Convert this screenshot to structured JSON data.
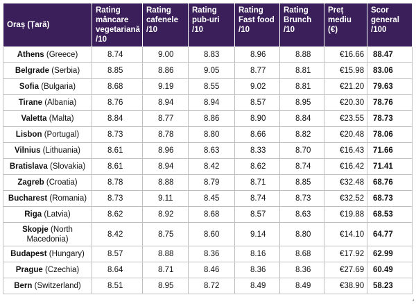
{
  "headers": [
    "Oraș (Țară)",
    "Rating mâncare vegetariană /10",
    "Rating cafenele /10",
    "Rating pub-uri /10",
    "Rating Fast food /10",
    "Rating Brunch /10",
    "Preț mediu (€)",
    "Scor general /100"
  ],
  "rows": [
    {
      "city": "Athens",
      "country": "(Greece)",
      "veg": "8.74",
      "cafe": "9.00",
      "pub": "8.83",
      "fast": "8.96",
      "brunch": "8.88",
      "price": "€16.66",
      "score": "88.47"
    },
    {
      "city": "Belgrade",
      "country": "(Serbia)",
      "veg": "8.85",
      "cafe": "8.86",
      "pub": "9.05",
      "fast": "8.77",
      "brunch": "8.81",
      "price": "€15.98",
      "score": "83.06"
    },
    {
      "city": "Sofia",
      "country": "(Bulgaria)",
      "veg": "8.68",
      "cafe": "9.19",
      "pub": "8.55",
      "fast": "9.02",
      "brunch": "8.81",
      "price": "€21.20",
      "score": "79.63"
    },
    {
      "city": "Tirane",
      "country": "(Albania)",
      "veg": "8.76",
      "cafe": "8.94",
      "pub": "8.94",
      "fast": "8.57",
      "brunch": "8.95",
      "price": "€20.30",
      "score": "78.76"
    },
    {
      "city": "Valetta",
      "country": "(Malta)",
      "veg": "8.84",
      "cafe": "8.77",
      "pub": "8.86",
      "fast": "8.90",
      "brunch": "8.84",
      "price": "€23.55",
      "score": "78.73"
    },
    {
      "city": "Lisbon",
      "country": "(Portugal)",
      "veg": "8.73",
      "cafe": "8.78",
      "pub": "8.80",
      "fast": "8.66",
      "brunch": "8.82",
      "price": "€20.48",
      "score": "78.06"
    },
    {
      "city": "Vilnius",
      "country": "(Lithuania)",
      "veg": "8.61",
      "cafe": "8.96",
      "pub": "8.63",
      "fast": "8.33",
      "brunch": "8.70",
      "price": "€16.43",
      "score": "71.66"
    },
    {
      "city": "Bratislava",
      "country": "(Slovakia)",
      "veg": "8.61",
      "cafe": "8.94",
      "pub": "8.42",
      "fast": "8.62",
      "brunch": "8.74",
      "price": "€16.42",
      "score": "71.41"
    },
    {
      "city": "Zagreb",
      "country": "(Croatia)",
      "veg": "8.78",
      "cafe": "8.88",
      "pub": "8.79",
      "fast": "8.71",
      "brunch": "8.85",
      "price": "€32.48",
      "score": "68.76"
    },
    {
      "city": "Bucharest",
      "country": "(Romania)",
      "veg": "8.73",
      "cafe": "9.11",
      "pub": "8.45",
      "fast": "8.74",
      "brunch": "8.73",
      "price": "€32.52",
      "score": "68.73"
    },
    {
      "city": "Riga",
      "country": "(Latvia)",
      "veg": "8.62",
      "cafe": "8.92",
      "pub": "8.68",
      "fast": "8.57",
      "brunch": "8.63",
      "price": "€19.88",
      "score": "68.53"
    },
    {
      "city": "Skopje",
      "country": "(North Macedonia)",
      "veg": "8.42",
      "cafe": "8.75",
      "pub": "8.60",
      "fast": "9.14",
      "brunch": "8.80",
      "price": "€14.10",
      "score": "64.77"
    },
    {
      "city": "Budapest",
      "country": "(Hungary)",
      "veg": "8.57",
      "cafe": "8.88",
      "pub": "8.36",
      "fast": "8.16",
      "brunch": "8.68",
      "price": "€17.92",
      "score": "62.99"
    },
    {
      "city": "Prague",
      "country": "(Czechia)",
      "veg": "8.64",
      "cafe": "8.71",
      "pub": "8.46",
      "fast": "8.36",
      "brunch": "8.36",
      "price": "€27.69",
      "score": "60.49"
    },
    {
      "city": "Bern",
      "country": "(Switzerland)",
      "veg": "8.51",
      "cafe": "8.95",
      "pub": "8.72",
      "fast": "8.49",
      "brunch": "8.49",
      "price": "€38.90",
      "score": "58.23"
    }
  ]
}
